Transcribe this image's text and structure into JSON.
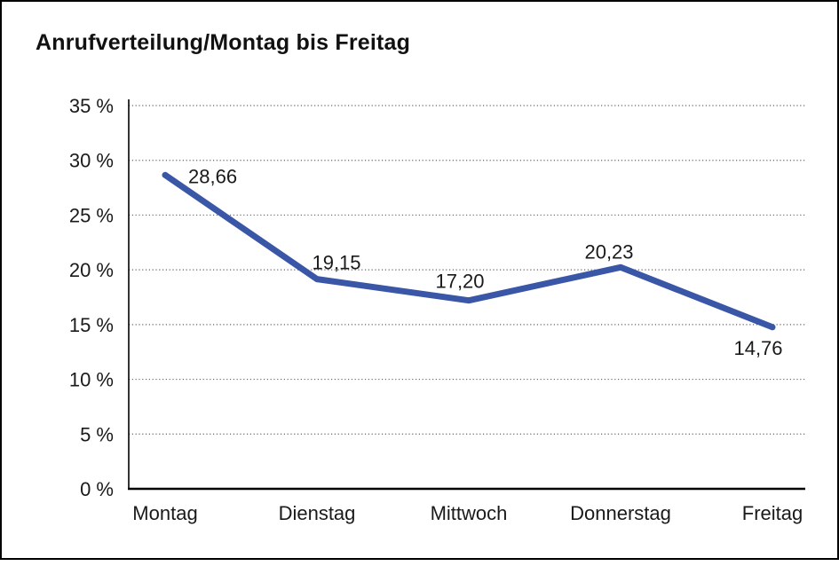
{
  "page": {
    "title": "Anrufverteilung/Montag bis Freitag"
  },
  "chart_data": {
    "type": "line",
    "title": "Anrufverteilung/Montag bis Freitag",
    "categories": [
      "Montag",
      "Dienstag",
      "Mittwoch",
      "Donnerstag",
      "Freitag"
    ],
    "series": [
      {
        "name": "Anrufverteilung",
        "values": [
          28.66,
          19.15,
          17.2,
          20.23,
          14.76
        ]
      }
    ],
    "point_labels": [
      "28,66",
      "19,15",
      "17,20",
      "20,23",
      "14,76"
    ],
    "y_ticks": {
      "values": [
        0,
        5,
        10,
        15,
        20,
        25,
        30,
        35
      ],
      "labels": [
        "0 %",
        "5 %",
        "10 %",
        "15 %",
        "20 %",
        "25 %",
        "30 %",
        "35 %"
      ]
    },
    "ylim": [
      0,
      35
    ],
    "xlabel": "",
    "ylabel": "",
    "legend": "none",
    "grid": "horizontal-dotted",
    "line_color": "#3A57A7",
    "grid_color": "#666666",
    "axis_color": "#000000",
    "text_color": "#1a1a1a"
  }
}
